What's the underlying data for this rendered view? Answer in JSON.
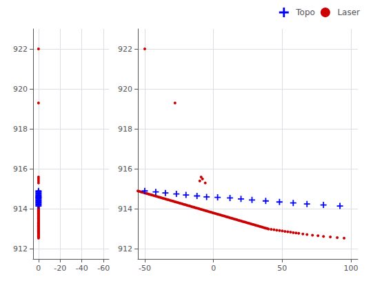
{
  "chart_data": {
    "type": "scatter3d",
    "xlim": [
      5,
      -65
    ],
    "ylim": [
      -55,
      105
    ],
    "zlim": [
      911.5,
      923
    ],
    "xticks": [
      0,
      -20,
      -40,
      -60
    ],
    "yticks": [
      -50,
      0,
      50,
      100
    ],
    "zticks": [
      912,
      914,
      916,
      918,
      920,
      922
    ],
    "grid": true,
    "legend": "upper right",
    "series": [
      {
        "name": "Topo",
        "color": "#0000ff",
        "marker": "plus",
        "x": [
          0,
          0,
          0,
          0,
          0,
          0,
          0,
          0,
          0,
          0,
          0,
          0,
          0,
          0,
          0,
          0,
          0
        ],
        "y": [
          -50,
          -42,
          -35,
          -27,
          -20,
          -12,
          -5,
          3,
          12,
          20,
          28,
          38,
          48,
          58,
          68,
          80,
          92
        ],
        "z": [
          914.9,
          914.85,
          914.8,
          914.75,
          914.7,
          914.65,
          914.6,
          914.58,
          914.55,
          914.5,
          914.45,
          914.4,
          914.35,
          914.3,
          914.25,
          914.2,
          914.15
        ]
      },
      {
        "name": "Laser",
        "color": "#cc0000",
        "marker": "point",
        "x": [
          0,
          0,
          0,
          0,
          0,
          0,
          0,
          0,
          0,
          0,
          0,
          0,
          0,
          0,
          0,
          0,
          0,
          0,
          0,
          0,
          0,
          0,
          0,
          0,
          0,
          0,
          0,
          0,
          0,
          0,
          0,
          0,
          0,
          0,
          0,
          0,
          0,
          0,
          0,
          0,
          0,
          0,
          0,
          0,
          0,
          0,
          0,
          0,
          0,
          0,
          0,
          0,
          0,
          0,
          0,
          0,
          0,
          0,
          0,
          0,
          0,
          0,
          0,
          0,
          0,
          0,
          0,
          0,
          0,
          0,
          0,
          0,
          0,
          0,
          0,
          0,
          0,
          0,
          0,
          0,
          0,
          0,
          0,
          0,
          0,
          0,
          0,
          0,
          0,
          0,
          0,
          0,
          0,
          0,
          0,
          0,
          0,
          0,
          0,
          0,
          0,
          0,
          0,
          0,
          0,
          0,
          0,
          0,
          0,
          0,
          0,
          0,
          0,
          0,
          0
        ],
        "y": [
          -55,
          -54,
          -53,
          -52,
          -51,
          -50,
          -49,
          -48,
          -47,
          -46,
          -45,
          -44,
          -43,
          -42,
          -41,
          -40,
          -39,
          -38,
          -37,
          -36,
          -35,
          -34,
          -33,
          -32,
          -31,
          -30,
          -29,
          -28,
          -27,
          -26,
          -25,
          -24,
          -23,
          -22,
          -21,
          -20,
          -19,
          -18,
          -17,
          -16,
          -15,
          -14,
          -13,
          -12,
          -11,
          -10,
          -9,
          -8,
          -7,
          -6,
          -5,
          -4,
          -3,
          -2,
          -1,
          0,
          1,
          2,
          3,
          4,
          5,
          6,
          7,
          8,
          9,
          10,
          11,
          12,
          13,
          14,
          15,
          16,
          17,
          18,
          19,
          20,
          21,
          22,
          23,
          24,
          25,
          26,
          27,
          28,
          29,
          30,
          31,
          32,
          33,
          34,
          35,
          36,
          37,
          38,
          39,
          40,
          42,
          44,
          46,
          48,
          50,
          52,
          54,
          56,
          58,
          60,
          62,
          65,
          68,
          72,
          76,
          80,
          85,
          90,
          95
        ],
        "z": [
          914.9,
          914.88,
          914.86,
          914.84,
          914.82,
          914.8,
          914.78,
          914.76,
          914.74,
          914.72,
          914.7,
          914.68,
          914.66,
          914.64,
          914.62,
          914.6,
          914.58,
          914.56,
          914.54,
          914.52,
          914.5,
          914.48,
          914.46,
          914.44,
          914.42,
          914.4,
          914.38,
          914.36,
          914.34,
          914.32,
          914.3,
          914.28,
          914.26,
          914.24,
          914.22,
          914.2,
          914.18,
          914.16,
          914.14,
          914.12,
          914.1,
          914.08,
          914.06,
          914.04,
          914.02,
          914.0,
          913.98,
          913.96,
          913.94,
          913.92,
          913.9,
          913.88,
          913.86,
          913.84,
          913.82,
          913.8,
          913.78,
          913.76,
          913.74,
          913.72,
          913.7,
          913.68,
          913.66,
          913.64,
          913.62,
          913.6,
          913.58,
          913.56,
          913.54,
          913.52,
          913.5,
          913.48,
          913.46,
          913.44,
          913.42,
          913.4,
          913.38,
          913.36,
          913.34,
          913.32,
          913.3,
          913.28,
          913.26,
          913.24,
          913.22,
          913.2,
          913.18,
          913.16,
          913.14,
          913.12,
          913.1,
          913.08,
          913.06,
          913.04,
          913.02,
          913.0,
          912.98,
          912.96,
          912.94,
          912.92,
          912.9,
          912.88,
          912.86,
          912.84,
          912.82,
          912.8,
          912.78,
          912.75,
          912.72,
          912.69,
          912.66,
          912.63,
          912.6,
          912.57,
          912.54
        ]
      },
      {
        "color": "#cc0000",
        "marker": "point",
        "x": [
          0,
          0
        ],
        "y": [
          -50,
          -28
        ],
        "z": [
          922.0,
          919.3
        ]
      },
      {
        "color": "#cc0000",
        "marker": "point",
        "x": [
          0,
          0,
          0,
          0
        ],
        "y": [
          -8,
          -6,
          -9,
          -10
        ],
        "z": [
          915.5,
          915.3,
          915.6,
          915.4
        ]
      }
    ]
  }
}
